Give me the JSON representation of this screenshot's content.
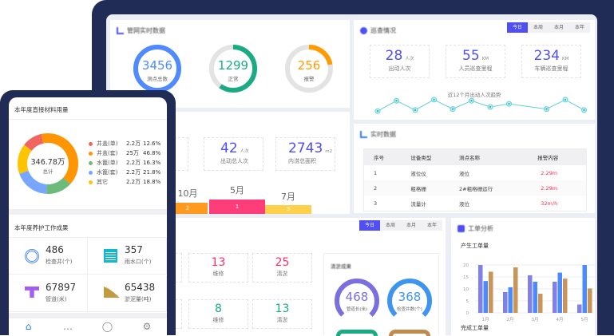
{
  "colors": {
    "accent": "#4f4ff5",
    "frame": "#202c55",
    "alarm": "#ff2d55"
  },
  "pipe_panel": {
    "title": "管网实时数据",
    "gauges": [
      {
        "value": "3456",
        "label": "测点总数",
        "fill": 1.0,
        "color": "#4f8bff"
      },
      {
        "value": "1299",
        "label": "正常",
        "fill": 0.6,
        "color": "#1aab85"
      },
      {
        "value": "256",
        "label": "报警",
        "fill": 0.22,
        "color": "#ff9a00"
      }
    ]
  },
  "patrol_panel": {
    "title": "巡查情况",
    "tabs": [
      "今日",
      "本周",
      "本月",
      "本年"
    ],
    "active_tab": 0,
    "stats": [
      {
        "value": "28",
        "unit": "人次",
        "label": "出动人次"
      },
      {
        "value": "55",
        "unit": "KM",
        "label": "人员巡查里程"
      },
      {
        "value": "234",
        "unit": "KM",
        "label": "车辆巡查里程"
      }
    ],
    "trend_title": "近12个月出动人次趋势",
    "trend": [
      3,
      8,
      3.5,
      8.5,
      4,
      8,
      5,
      6.5,
      null,
      4,
      8.5,
      3.5
    ]
  },
  "dredge_panel": {
    "stats": [
      {
        "value": "42",
        "unit": "人次",
        "label": "出动总人次"
      },
      {
        "value": "2743",
        "unit": "m2",
        "label": "内涝总面积"
      }
    ],
    "ranking": [
      {
        "month": "10月",
        "rank": "2",
        "color": "#ff9a1f"
      },
      {
        "month": "5月",
        "rank": "1",
        "color": "#ff3d7a"
      },
      {
        "month": "7月",
        "rank": "3",
        "color": "#ffd04a"
      }
    ]
  },
  "realtime_panel": {
    "title": "实时数据",
    "columns": [
      "序号",
      "设备类型",
      "测点名称",
      "报警内容"
    ],
    "rows": [
      [
        "1",
        "液位仪",
        "液位",
        "2.29m"
      ],
      [
        "2",
        "粗格栅",
        "2#粗格栅运行",
        "2.29m"
      ],
      [
        "3",
        "流量计",
        "液位",
        "32m/h"
      ]
    ]
  },
  "work_panel": {
    "tabs": [
      "今日",
      "本周",
      "本月",
      "本年"
    ],
    "active_tab": 0,
    "row1": [
      {
        "value": "13",
        "label": "维修",
        "color": "#ff2d6a"
      },
      {
        "value": "25",
        "label": "清淤",
        "color": "#ff2d6a"
      }
    ],
    "row2": [
      {
        "value": "8",
        "label": "维修",
        "color": "#1aab85"
      },
      {
        "value": "13",
        "label": "清淤",
        "color": "#1aab85"
      }
    ],
    "result_title": "清淤成果",
    "result_gauges": [
      {
        "value": "468",
        "label": "管道长(米)",
        "color": "#7b6fe0"
      },
      {
        "value": "368",
        "label": "检查井数(个)",
        "color": "#3d95f0"
      }
    ]
  },
  "order_panel": {
    "title": "工单分析",
    "chart_title": "产生工单量",
    "next_title": "完成工单量"
  },
  "chart_data": {
    "type": "bar",
    "title": "产生工单量",
    "categories": [
      "1月",
      "2月",
      "3月",
      "4月",
      "5月"
    ],
    "ylim": [
      0,
      20
    ],
    "yticks": [
      0,
      5,
      10,
      15,
      20
    ],
    "grid": true,
    "series": [
      {
        "color": "#8080e8",
        "values": [
          20,
          8.7,
          15.7,
          13,
          3.5
        ]
      },
      {
        "color": "#4b8bff",
        "values": [
          13.3,
          10.7,
          13,
          16.8,
          20
        ]
      },
      {
        "color": "#c9955a",
        "values": [
          17.2,
          19,
          8,
          14.3,
          10.2
        ]
      }
    ]
  },
  "phone": {
    "material_title": "本年度直接材料用量",
    "donut_total": "346.78万",
    "donut_label": "总计",
    "legend": [
      {
        "name": "井盖(单)",
        "amount": "2.2万",
        "pct": "12.6%",
        "value": 12.6,
        "color": "#f0655f"
      },
      {
        "name": "井盖(套)",
        "amount": "25万",
        "pct": "46.8%",
        "value": 46.8,
        "color": "#ff9500"
      },
      {
        "name": "水篦(单)",
        "amount": "2.2万",
        "pct": "16.3%",
        "value": 16.3,
        "color": "#6dbb7a"
      },
      {
        "name": "水篦(套)",
        "amount": "2.2万",
        "pct": "21.8%",
        "value": 21.8,
        "color": "#78a6ff"
      },
      {
        "name": "其它",
        "amount": "2.2万",
        "pct": "18.8%",
        "value": 18.8,
        "color": "#ffc400"
      }
    ],
    "maint_title": "本年度养护工作成果",
    "cells": [
      {
        "value": "486",
        "label": "检查井(个)",
        "icon": "manhole-icon"
      },
      {
        "value": "357",
        "label": "雨水口(个)",
        "icon": "drain-icon"
      },
      {
        "value": "67897",
        "label": "管道(米)",
        "icon": "pipe-icon"
      },
      {
        "value": "65438",
        "label": "淤泥量(吨)",
        "icon": "sludge-icon"
      }
    ],
    "nav": [
      "home-icon",
      "message-icon",
      "user-icon",
      "settings-icon"
    ]
  }
}
